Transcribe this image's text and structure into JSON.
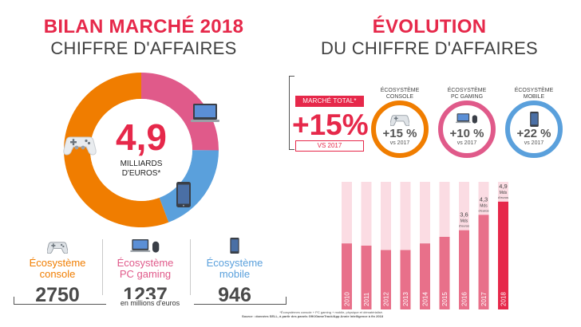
{
  "left": {
    "title_line1": "BILAN MARCHÉ 2018",
    "title_line2": "CHIFFRE D'AFFAIRES",
    "center_value": "4,9",
    "center_unit_line1": "MILLIARDS",
    "center_unit_line2": "D'EUROS*",
    "unit_note": "en millions d'euros"
  },
  "right": {
    "title_line1": "ÉVOLUTION",
    "title_line2": "DU CHIFFRE D'AFFAIRES",
    "market_total_label": "MARCHÉ TOTAL*",
    "market_total_value": "+15%",
    "market_total_vs": "VS 2017",
    "ecosystems": [
      {
        "title_line1": "ÉCOSYSTÈME",
        "title_line2": "CONSOLE",
        "value": "+15 %",
        "vs": "vs 2017",
        "icon": "gamepad-icon",
        "color": "#f07d00"
      },
      {
        "title_line1": "ÉCOSYSTÈME",
        "title_line2": "PC GAMING",
        "value": "+10 %",
        "vs": "vs 2017",
        "icon": "laptop-icon",
        "color": "#e05a8a"
      },
      {
        "title_line1": "ÉCOSYSTÈME",
        "title_line2": "MOBILE",
        "value": "+22 %",
        "vs": "vs 2017",
        "icon": "smartphone-icon",
        "color": "#5aa0dc"
      }
    ],
    "source_line1": "*Écosystèmes console + PC gaming + mobile, physique et dématérialisé.",
    "source_line2": "Source : données SELL, à partir des panels GfK/GameTrack/App Annie Intelligence à fin 2018"
  },
  "colors": {
    "red": "#e6284a",
    "console": "#f07d00",
    "pc": "#e05a8a",
    "mobile": "#5aa0dc",
    "bar": "#e8708a",
    "bar_bg": "#fbdce3",
    "bar_last": "#e6284a"
  },
  "chart_data": [
    {
      "type": "pie",
      "categories": [
        "Écosystème console",
        "Écosystème PC gaming",
        "Écosystème mobile"
      ],
      "values": [
        2750,
        1237,
        946
      ],
      "labels": [
        [
          "Écosystème",
          "console"
        ],
        [
          "Écosystème",
          "PC gaming"
        ],
        [
          "Écosystème",
          "mobile"
        ]
      ],
      "value_labels": [
        "2750",
        "1237",
        "946"
      ],
      "icons": [
        "gamepad-icon",
        "laptop-mouse-icon",
        "smartphone-icon"
      ],
      "colors": [
        "#f07d00",
        "#e05a8a",
        "#5aa0dc"
      ],
      "donut": true
    },
    {
      "type": "bar",
      "categories": [
        "2010",
        "2011",
        "2012",
        "2013",
        "2014",
        "2015",
        "2016",
        "2017",
        "2018"
      ],
      "values": [
        3.0,
        2.9,
        2.7,
        2.7,
        3.0,
        3.3,
        3.6,
        4.3,
        4.9
      ],
      "ylim": [
        0,
        5.8
      ],
      "labels": [
        {
          "year": "2016",
          "value_text": "3,6",
          "unit_line1": "Mds",
          "unit_line2": "d'euros"
        },
        {
          "year": "2017",
          "value_text": "4,3",
          "unit_line1": "Mds",
          "unit_line2": "d'euros"
        },
        {
          "year": "2018",
          "value_text": "4,9",
          "unit_line1": "Mds",
          "unit_line2": "d'euros"
        }
      ]
    }
  ]
}
